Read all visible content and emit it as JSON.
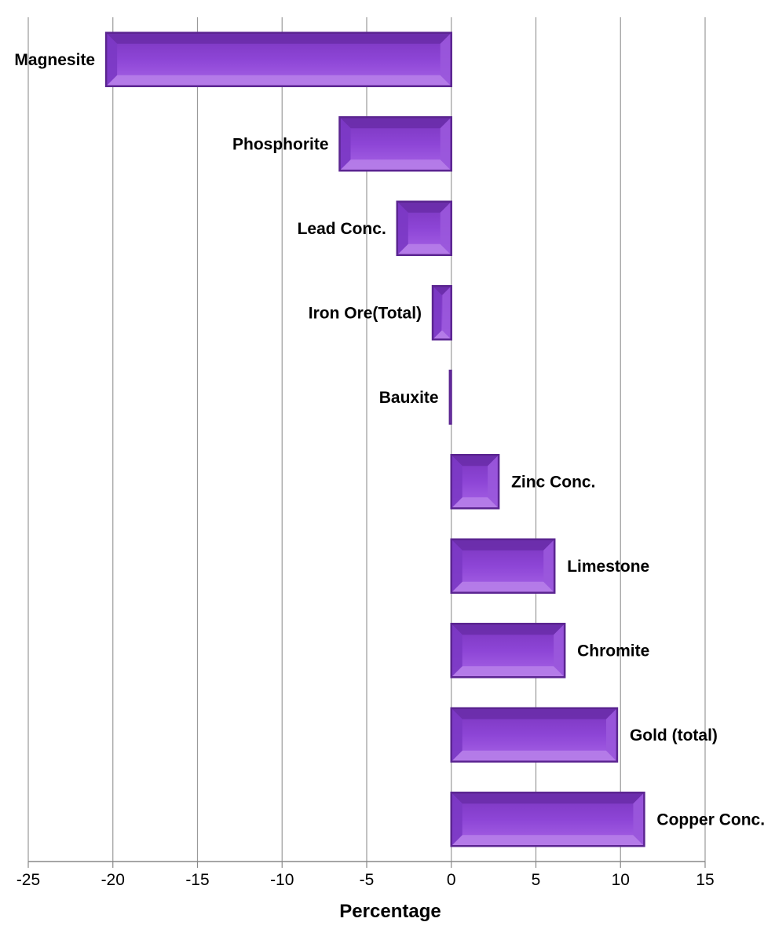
{
  "chart_data": {
    "type": "bar",
    "orientation": "horizontal",
    "xlabel": "Percentage",
    "xlim": [
      -25,
      15
    ],
    "xticks": [
      -25,
      -20,
      -15,
      -10,
      -5,
      0,
      5,
      10,
      15
    ],
    "grid": "vertical gridlines",
    "categories": [
      "Magnesite",
      "Phosphorite",
      "Lead Conc.",
      "Iron Ore(Total)",
      "Bauxite",
      "Zinc Conc.",
      "Limestone",
      "Chromite",
      "Gold (total)",
      "Copper Conc."
    ],
    "values": [
      -20.4,
      -6.6,
      -3.2,
      -1.1,
      -0.1,
      2.8,
      6.1,
      6.7,
      9.8,
      11.4
    ]
  },
  "colors": {
    "bar": "#8a3fd1",
    "bar_light": "#b57ce8",
    "bar_dark": "#5b2591",
    "grid": "#9a9a9a",
    "axis": "#888888"
  }
}
